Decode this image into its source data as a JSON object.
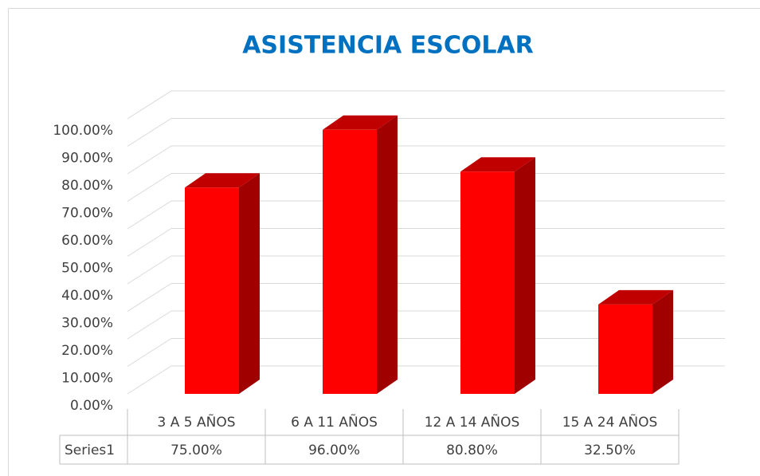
{
  "chart_data": {
    "type": "bar3d",
    "title": "ASISTENCIA ESCOLAR",
    "categories": [
      "3 A 5 AÑOS",
      "6 A 11 AÑOS",
      "12 A 14 AÑOS",
      "15 A 24 AÑOS"
    ],
    "series": [
      {
        "name": "Series1",
        "color": "#ff0000",
        "values": [
          75,
          96,
          80.8,
          32.5
        ],
        "value_labels": [
          "75.00%",
          "96.00%",
          "80.80%",
          "32.50%"
        ]
      }
    ],
    "ylim": [
      0,
      100
    ],
    "yticks": [
      {
        "value": 0,
        "label": "0.00%"
      },
      {
        "value": 10,
        "label": "10.00%"
      },
      {
        "value": 20,
        "label": "20.00%"
      },
      {
        "value": 30,
        "label": "30.00%"
      },
      {
        "value": 40,
        "label": "40.00%"
      },
      {
        "value": 50,
        "label": "50.00%"
      },
      {
        "value": 60,
        "label": "60.00%"
      },
      {
        "value": 70,
        "label": "70.00%"
      },
      {
        "value": 80,
        "label": "80.00%"
      },
      {
        "value": 90,
        "label": "90.00%"
      },
      {
        "value": 100,
        "label": "100.00%"
      }
    ],
    "grid": true,
    "data_table": true
  }
}
